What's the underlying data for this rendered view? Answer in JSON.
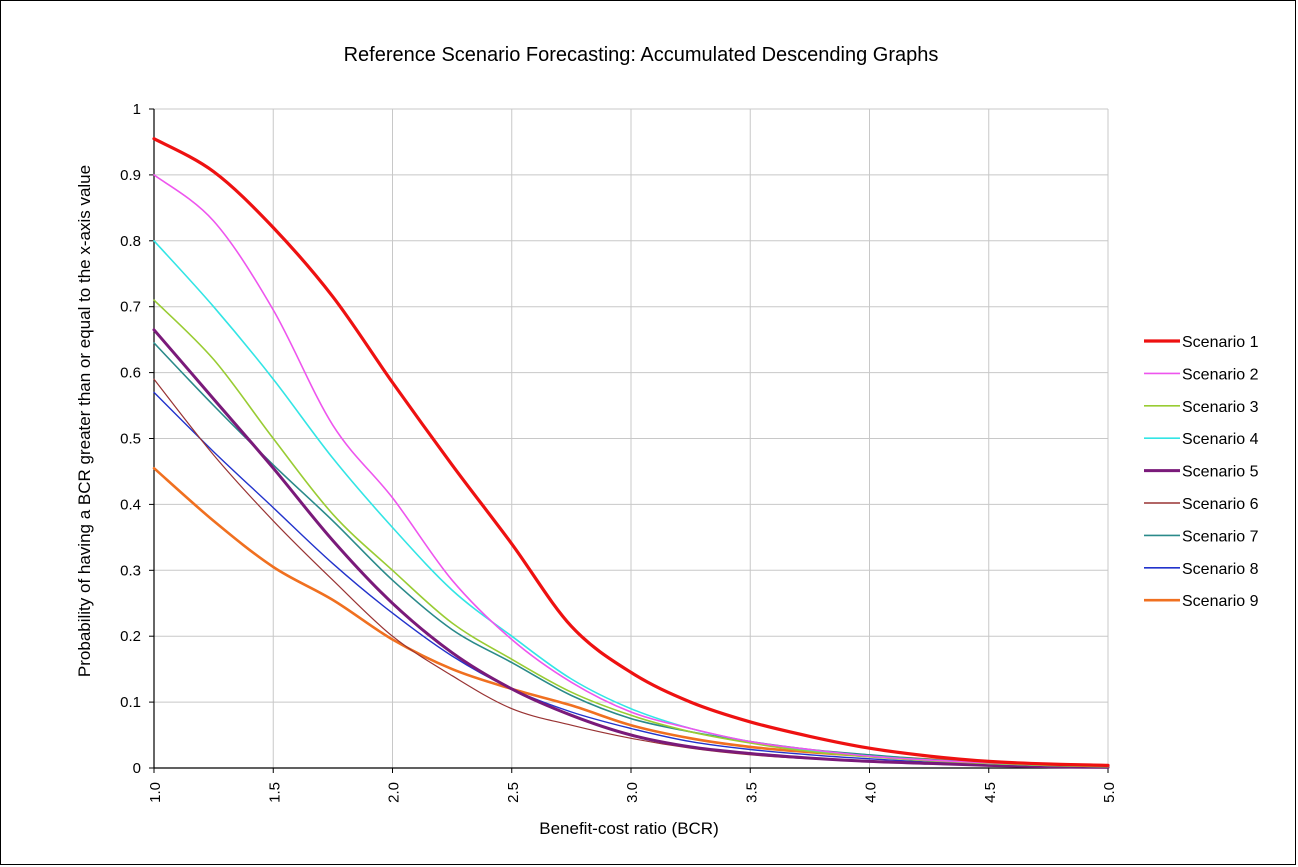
{
  "chart_data": {
    "type": "line",
    "title": "Reference Scenario Forecasting: Accumulated Descending Graphs",
    "xlabel": "Benefit-cost ratio (BCR)",
    "ylabel": "Probability of having a BCR greater than or equal to the x-axis value",
    "xlim": [
      1.0,
      5.0
    ],
    "ylim": [
      0,
      1
    ],
    "x_ticks": [
      "1.0",
      "1.5",
      "2.0",
      "2.5",
      "3.0",
      "3.5",
      "4.0",
      "4.5",
      "5.0"
    ],
    "y_ticks": [
      "0",
      "0.1",
      "0.2",
      "0.3",
      "0.4",
      "0.5",
      "0.6",
      "0.7",
      "0.8",
      "0.9",
      "1"
    ],
    "grid": true,
    "legend_position": "right",
    "x": [
      1.0,
      1.25,
      1.5,
      1.75,
      2.0,
      2.25,
      2.5,
      2.75,
      3.0,
      3.25,
      3.5,
      3.75,
      4.0,
      4.25,
      4.5,
      4.75,
      5.0
    ],
    "series": [
      {
        "name": "Scenario 1",
        "color": "#ee1111",
        "width": 3.2,
        "values": [
          0.955,
          0.905,
          0.82,
          0.715,
          0.585,
          0.46,
          0.34,
          0.215,
          0.145,
          0.1,
          0.07,
          0.048,
          0.03,
          0.018,
          0.01,
          0.006,
          0.004
        ]
      },
      {
        "name": "Scenario 2",
        "color": "#ee55ee",
        "width": 1.6,
        "values": [
          0.9,
          0.83,
          0.695,
          0.52,
          0.41,
          0.285,
          0.195,
          0.13,
          0.085,
          0.06,
          0.04,
          0.028,
          0.018,
          0.012,
          0.008,
          0.005,
          0.003
        ]
      },
      {
        "name": "Scenario 3",
        "color": "#99cc33",
        "width": 1.6,
        "values": [
          0.71,
          0.62,
          0.5,
          0.385,
          0.3,
          0.22,
          0.165,
          0.115,
          0.08,
          0.055,
          0.038,
          0.025,
          0.017,
          0.011,
          0.007,
          0.004,
          0.002
        ]
      },
      {
        "name": "Scenario 4",
        "color": "#33e5e5",
        "width": 1.6,
        "values": [
          0.8,
          0.7,
          0.59,
          0.47,
          0.365,
          0.27,
          0.2,
          0.135,
          0.09,
          0.06,
          0.04,
          0.027,
          0.018,
          0.012,
          0.007,
          0.004,
          0.002
        ]
      },
      {
        "name": "Scenario 5",
        "color": "#7a1a7a",
        "width": 3.0,
        "values": [
          0.665,
          0.56,
          0.455,
          0.345,
          0.25,
          0.175,
          0.12,
          0.08,
          0.05,
          0.032,
          0.022,
          0.015,
          0.01,
          0.007,
          0.004,
          0.002,
          0.001
        ]
      },
      {
        "name": "Scenario 6",
        "color": "#993333",
        "width": 1.2,
        "values": [
          0.59,
          0.475,
          0.375,
          0.285,
          0.2,
          0.14,
          0.09,
          0.065,
          0.045,
          0.03,
          0.02,
          0.014,
          0.01,
          0.006,
          0.004,
          0.002,
          0.001
        ]
      },
      {
        "name": "Scenario 7",
        "color": "#2a8a8a",
        "width": 1.6,
        "values": [
          0.645,
          0.55,
          0.46,
          0.375,
          0.285,
          0.21,
          0.16,
          0.11,
          0.075,
          0.055,
          0.04,
          0.028,
          0.02,
          0.013,
          0.008,
          0.005,
          0.003
        ]
      },
      {
        "name": "Scenario 8",
        "color": "#2233cc",
        "width": 1.4,
        "values": [
          0.57,
          0.48,
          0.395,
          0.31,
          0.235,
          0.17,
          0.12,
          0.085,
          0.06,
          0.04,
          0.028,
          0.02,
          0.014,
          0.009,
          0.006,
          0.003,
          0.002
        ]
      },
      {
        "name": "Scenario 9",
        "color": "#f07020",
        "width": 2.6,
        "values": [
          0.455,
          0.375,
          0.305,
          0.255,
          0.195,
          0.15,
          0.12,
          0.095,
          0.065,
          0.045,
          0.032,
          0.024,
          0.018,
          0.013,
          0.009,
          0.006,
          0.004
        ]
      }
    ]
  }
}
